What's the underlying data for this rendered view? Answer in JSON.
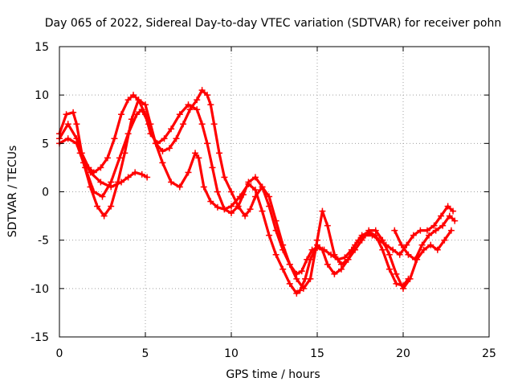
{
  "chart_data": {
    "type": "scatter",
    "title": "Day 065 of 2022, Sidereal Day-to-day VTEC variation (SDTVAR) for receiver pohn",
    "xlabel": "GPS time / hours",
    "ylabel": "SDTVAR / TECUs",
    "xlim": [
      0,
      25
    ],
    "ylim": [
      -15,
      15
    ],
    "xticks": [
      0,
      5,
      10,
      15,
      20,
      25
    ],
    "yticks": [
      -15,
      -10,
      -5,
      0,
      5,
      10,
      15
    ],
    "xtick_labels": [
      "0",
      "5",
      "10",
      "15",
      "20",
      "25"
    ],
    "ytick_labels": [
      "-15",
      "-10",
      "-5",
      "0",
      "5",
      "10",
      "15"
    ],
    "grid": true,
    "marker": "+",
    "color": "#ff0000",
    "series": [
      {
        "name": "track-1",
        "x": [
          0.0,
          0.4,
          0.8,
          1.0,
          1.3,
          1.7,
          2.0,
          2.4,
          2.8,
          3.2,
          3.6,
          4.0,
          4.3,
          4.6,
          5.0,
          5.3,
          5.7,
          6.1,
          6.5,
          7.0,
          7.5,
          8.0,
          8.3,
          8.6,
          8.9,
          9.2,
          9.6,
          10.0,
          10.4,
          10.7,
          11.0,
          11.4,
          11.8,
          12.2,
          12.6,
          13.0,
          13.4,
          13.8,
          14.1,
          14.4,
          14.7,
          15.0,
          15.4,
          15.8,
          16.2,
          16.6,
          17.0,
          17.4,
          17.8,
          18.2,
          18.6,
          19.0,
          19.4,
          19.8,
          20.2,
          20.6,
          21.0,
          21.4,
          21.8,
          22.2,
          22.6,
          22.9
        ],
        "y": [
          6.0,
          8.0,
          8.2,
          7.0,
          4.0,
          2.5,
          2.0,
          2.5,
          3.5,
          5.5,
          8.0,
          9.5,
          10.0,
          9.5,
          8.0,
          6.0,
          5.0,
          5.5,
          6.5,
          8.0,
          9.0,
          8.5,
          7.0,
          5.0,
          2.5,
          0.0,
          -1.8,
          -2.2,
          -1.5,
          -0.3,
          1.0,
          1.5,
          0.5,
          -1.5,
          -4.0,
          -6.0,
          -7.5,
          -8.5,
          -8.2,
          -7.0,
          -6.0,
          -5.8,
          -6.0,
          -6.5,
          -7.0,
          -6.8,
          -6.0,
          -5.0,
          -4.5,
          -4.5,
          -5.0,
          -5.5,
          -6.0,
          -6.5,
          -5.5,
          -4.5,
          -4.0,
          -4.0,
          -3.5,
          -2.5,
          -1.5,
          -2.0
        ]
      },
      {
        "name": "track-2",
        "x": [
          0.0,
          0.5,
          1.0,
          1.5,
          2.0,
          2.5,
          3.0,
          3.5,
          4.0,
          4.5,
          4.8,
          5.2,
          5.6,
          6.0,
          6.5,
          7.0,
          7.5,
          7.9,
          8.1,
          8.4,
          8.8,
          9.2,
          9.6,
          10.0,
          10.5,
          11.0,
          11.4,
          11.8,
          12.2,
          12.6,
          13.0,
          13.4,
          13.8,
          14.0,
          14.3,
          14.6,
          15.0,
          15.3,
          15.6,
          16.0,
          16.4,
          16.8,
          17.2,
          17.6,
          18.0,
          18.4,
          18.8,
          19.2,
          19.6,
          20.0,
          20.3
        ],
        "y": [
          5.0,
          5.5,
          5.0,
          2.5,
          0.0,
          -0.5,
          1.0,
          3.5,
          6.0,
          8.0,
          8.5,
          7.0,
          5.0,
          3.0,
          1.0,
          0.5,
          2.0,
          4.0,
          3.5,
          0.5,
          -1.0,
          -1.6,
          -1.8,
          -1.5,
          -0.5,
          0.8,
          0.2,
          -2.0,
          -4.5,
          -6.5,
          -8.0,
          -9.5,
          -10.5,
          -10.2,
          -9.0,
          -7.0,
          -5.5,
          -6.0,
          -7.5,
          -8.5,
          -8.0,
          -7.0,
          -5.5,
          -4.5,
          -4.2,
          -4.5,
          -6.0,
          -8.0,
          -9.5,
          -9.7,
          -9.0
        ]
      },
      {
        "name": "track-3",
        "x": [
          0.0,
          0.5,
          1.0,
          1.4,
          1.8,
          2.2,
          2.6,
          3.0,
          3.4,
          3.8,
          4.2,
          4.6,
          5.0,
          5.3,
          5.6,
          6.0,
          6.4,
          6.8,
          7.2,
          7.6,
          8.0,
          8.3,
          8.6,
          8.8,
          9.0,
          9.3,
          9.6,
          10.0,
          10.4,
          10.8,
          11.1,
          11.4,
          11.8,
          12.2,
          12.6,
          13.0,
          13.4,
          13.8,
          14.2,
          14.6,
          15.0,
          15.3,
          15.6,
          16.0,
          16.4,
          16.8,
          17.2,
          17.6,
          18.0,
          18.4,
          18.8,
          19.2,
          19.6,
          20.0,
          20.4,
          20.8,
          21.2,
          21.6,
          22.0,
          22.4,
          22.8
        ],
        "y": [
          5.5,
          7.0,
          5.5,
          3.0,
          0.5,
          -1.5,
          -2.5,
          -1.5,
          1.0,
          4.0,
          7.5,
          9.5,
          9.0,
          7.0,
          5.0,
          4.2,
          4.5,
          5.5,
          7.0,
          8.5,
          9.5,
          10.5,
          10.0,
          9.0,
          7.0,
          4.0,
          1.5,
          0.0,
          -1.5,
          -2.5,
          -1.8,
          -0.5,
          0.5,
          -0.5,
          -3.0,
          -5.5,
          -7.5,
          -9.0,
          -10.0,
          -9.0,
          -5.0,
          -2.0,
          -3.5,
          -6.5,
          -7.5,
          -7.0,
          -6.0,
          -5.0,
          -4.0,
          -4.0,
          -5.0,
          -6.5,
          -8.5,
          -10.0,
          -9.0,
          -7.0,
          -6.0,
          -5.5,
          -6.0,
          -5.0,
          -4.0
        ]
      },
      {
        "name": "track-4",
        "x": [
          1.2,
          1.8,
          2.4,
          3.0,
          3.6,
          4.0,
          4.4,
          4.8,
          5.1
        ],
        "y": [
          4.0,
          2.0,
          1.0,
          0.5,
          1.0,
          1.5,
          2.0,
          1.8,
          1.5
        ]
      },
      {
        "name": "track-5",
        "x": [
          19.5,
          19.9,
          20.3,
          20.7,
          21.1,
          21.5,
          21.9,
          22.3,
          22.7,
          23.0
        ],
        "y": [
          -4.0,
          -5.5,
          -6.5,
          -7.0,
          -5.5,
          -4.5,
          -4.0,
          -3.5,
          -2.5,
          -3.0
        ]
      }
    ]
  }
}
